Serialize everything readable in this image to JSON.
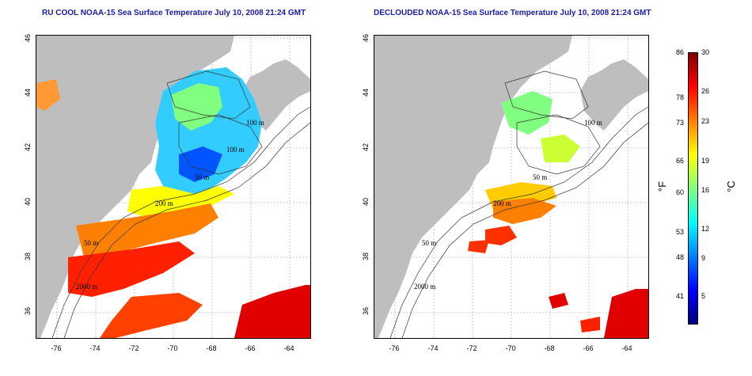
{
  "panels": [
    {
      "title": "RU COOL NOAA-15 Sea Surface Temperature July 10, 2008 21:24 GMT"
    },
    {
      "title": "DECLOUDED NOAA-15 Sea Surface Temperature July 10, 2008 21:24 GMT"
    }
  ],
  "axes": {
    "lon_ticks": [
      "-76",
      "-74",
      "-72",
      "-70",
      "-68",
      "-66",
      "-64"
    ],
    "lat_ticks": [
      "46",
      "44",
      "42",
      "40",
      "38",
      "36"
    ]
  },
  "contour_labels": {
    "left": [
      "100 m",
      "100 m",
      "50 m",
      "200 m",
      "50 m",
      "2000 m"
    ],
    "right": [
      "100 m",
      "50 m",
      "200 m",
      "50 m",
      "2000 m"
    ]
  },
  "colorbar": {
    "fahrenheit_ticks": [
      "86",
      "78",
      "73",
      "66",
      "60",
      "53",
      "48",
      "41"
    ],
    "celsius_ticks": [
      "30",
      "26",
      "23",
      "19",
      "16",
      "12",
      "9",
      "5"
    ],
    "unit_f": "°F",
    "unit_c": "°C",
    "colors": [
      "#00007f",
      "#0000ff",
      "#0080ff",
      "#00ffff",
      "#80ff80",
      "#ffff00",
      "#ff8000",
      "#ff0000",
      "#7f0000"
    ]
  },
  "colors": {
    "land": "#bebebe",
    "title": "#1a1aa6",
    "contour": "#333333"
  }
}
